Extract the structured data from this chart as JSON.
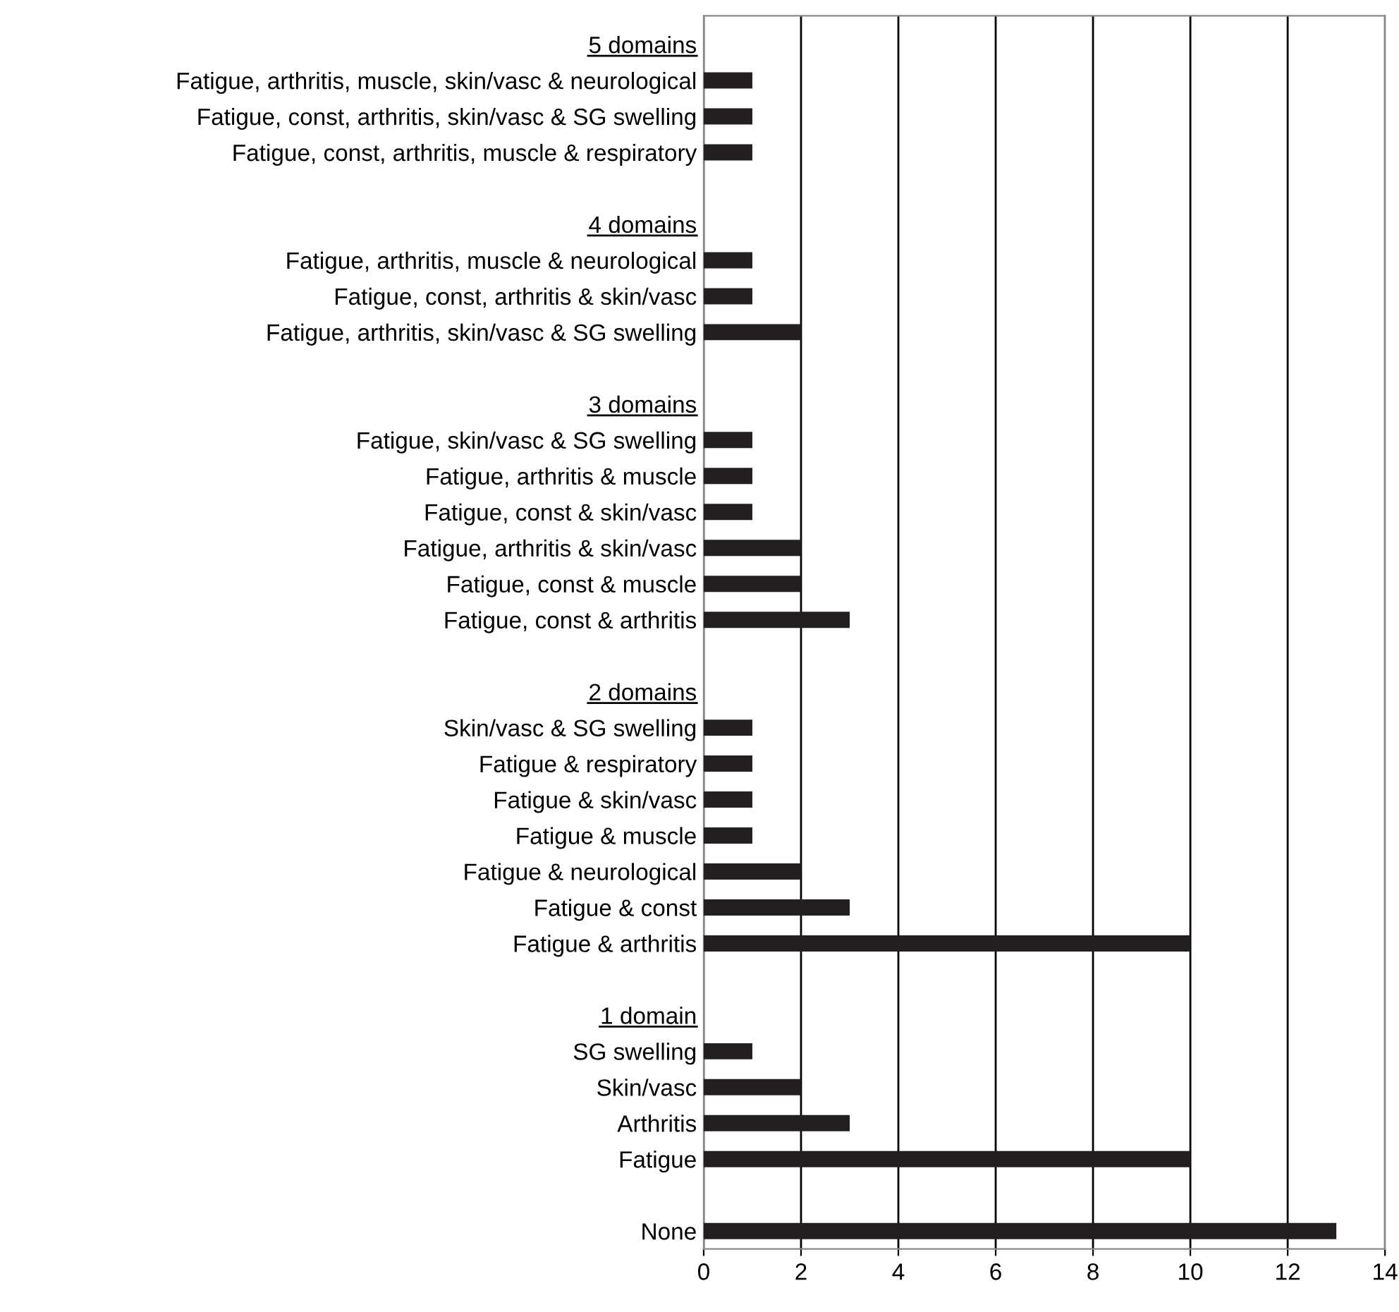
{
  "chart_data": {
    "type": "bar",
    "orientation": "horizontal",
    "categories": [
      "5 domains",
      "Fatigue, arthritis, muscle, skin/vasc & neurological",
      "Fatigue, const, arthritis, skin/vasc & SG swelling",
      "Fatigue, const, arthritis, muscle & respiratory",
      null,
      "4 domains",
      "Fatigue, arthritis, muscle & neurological",
      "Fatigue, const, arthritis & skin/vasc",
      "Fatigue, arthritis, skin/vasc & SG swelling",
      null,
      "3 domains",
      "Fatigue, skin/vasc & SG swelling",
      "Fatigue, arthritis & muscle",
      "Fatigue, const & skin/vasc",
      "Fatigue, arthritis & skin/vasc",
      "Fatigue, const & muscle",
      "Fatigue, const & arthritis",
      null,
      "2 domains",
      "Skin/vasc & SG swelling",
      "Fatigue & respiratory",
      "Fatigue & skin/vasc",
      "Fatigue & muscle",
      "Fatigue & neurological",
      "Fatigue & const",
      "Fatigue & arthritis",
      null,
      "1 domain",
      "SG swelling",
      "Skin/vasc",
      "Arthritis",
      "Fatigue",
      null,
      "None"
    ],
    "values": [
      null,
      1,
      1,
      1,
      null,
      null,
      1,
      1,
      2,
      null,
      null,
      1,
      1,
      1,
      2,
      2,
      3,
      null,
      null,
      1,
      1,
      1,
      1,
      2,
      3,
      10,
      null,
      null,
      1,
      2,
      3,
      10,
      null,
      13
    ],
    "color": "#231f20",
    "xlim": [
      0,
      14
    ],
    "xticks": [
      0,
      2,
      4,
      6,
      8,
      10,
      12,
      14
    ],
    "grid": "x"
  }
}
